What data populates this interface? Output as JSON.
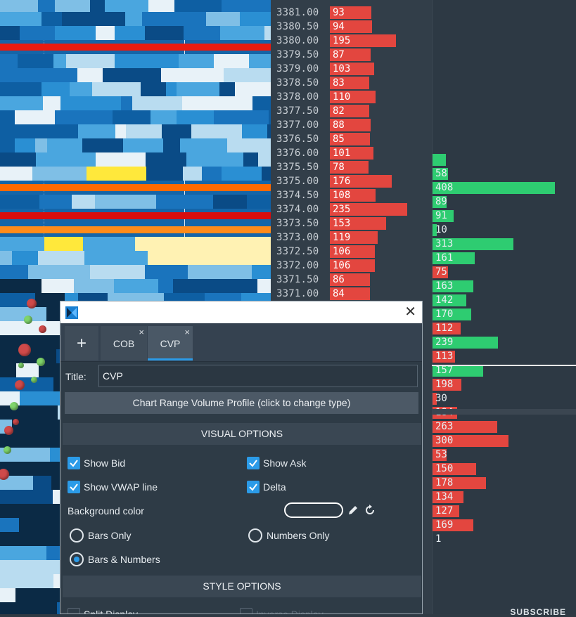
{
  "ladder": {
    "rows": [
      {
        "price": "3381.00",
        "vol": "93",
        "w": 27
      },
      {
        "price": "3380.50",
        "vol": "94",
        "w": 28
      },
      {
        "price": "3380.00",
        "vol": "195",
        "w": 62
      },
      {
        "price": "3379.50",
        "vol": "87",
        "w": 26
      },
      {
        "price": "3379.00",
        "vol": "103",
        "w": 31
      },
      {
        "price": "3378.50",
        "vol": "83",
        "w": 24
      },
      {
        "price": "3378.00",
        "vol": "110",
        "w": 33
      },
      {
        "price": "3377.50",
        "vol": "82",
        "w": 24
      },
      {
        "price": "3377.00",
        "vol": "88",
        "w": 26
      },
      {
        "price": "3376.50",
        "vol": "85",
        "w": 25
      },
      {
        "price": "3376.00",
        "vol": "101",
        "w": 30
      },
      {
        "price": "3375.50",
        "vol": "78",
        "w": 23
      },
      {
        "price": "3375.00",
        "vol": "176",
        "w": 56
      },
      {
        "price": "3374.50",
        "vol": "108",
        "w": 33
      },
      {
        "price": "3374.00",
        "vol": "235",
        "w": 78
      },
      {
        "price": "3373.50",
        "vol": "153",
        "w": 48
      },
      {
        "price": "3373.00",
        "vol": "119",
        "w": 36
      },
      {
        "price": "3372.50",
        "vol": "106",
        "w": 32
      },
      {
        "price": "3372.00",
        "vol": "106",
        "w": 32
      },
      {
        "price": "3371.50",
        "vol": "86",
        "w": 25
      },
      {
        "price": "3371.00",
        "vol": "84",
        "w": 25
      }
    ]
  },
  "cvp_profile": {
    "rows": [
      {
        "val": "",
        "color": "green",
        "w": 19
      },
      {
        "val": "58",
        "color": "green",
        "w": 22
      },
      {
        "val": "408",
        "color": "green",
        "w": 174
      },
      {
        "val": "89",
        "color": "green",
        "w": 20
      },
      {
        "val": "91",
        "color": "green",
        "w": 30
      },
      {
        "val": "10",
        "color": "green",
        "w": 6
      },
      {
        "val": "313",
        "color": "green",
        "w": 115
      },
      {
        "val": "161",
        "color": "green",
        "w": 60
      },
      {
        "val": "75",
        "color": "red",
        "w": 22
      },
      {
        "val": "163",
        "color": "green",
        "w": 58
      },
      {
        "val": "142",
        "color": "green",
        "w": 48
      },
      {
        "val": "170",
        "color": "green",
        "w": 55
      },
      {
        "val": "112",
        "color": "red",
        "w": 40
      },
      {
        "val": "239",
        "color": "green",
        "w": 93
      },
      {
        "val": "113",
        "color": "red",
        "w": 32
      },
      {
        "val": "157",
        "color": "green",
        "w": 72
      },
      {
        "val": "198",
        "color": "red",
        "w": 41
      },
      {
        "val": "30",
        "color": "red",
        "w": 6
      },
      {
        "val": "184",
        "color": "red",
        "w": 35
      },
      {
        "val": "263",
        "color": "red",
        "w": 92
      },
      {
        "val": "300",
        "color": "red",
        "w": 108
      },
      {
        "val": "53",
        "color": "red",
        "w": 20
      },
      {
        "val": "150",
        "color": "red",
        "w": 62
      },
      {
        "val": "178",
        "color": "red",
        "w": 76
      },
      {
        "val": "134",
        "color": "red",
        "w": 44
      },
      {
        "val": "127",
        "color": "red",
        "w": 38
      },
      {
        "val": "169",
        "color": "red",
        "w": 58
      },
      {
        "val": "1",
        "color": "none",
        "w": 0
      }
    ],
    "colors": {
      "green": "#2ecc71",
      "red": "#e3463f"
    }
  },
  "watermark": {
    "text": "SUBSCRIBE"
  },
  "dialog": {
    "tabs": {
      "add": "+",
      "cob": "COB",
      "cvp": "CVP",
      "close": "×"
    },
    "close": "✕",
    "title_label": "Title:",
    "title_value": "CVP",
    "type_button": "Chart Range Volume Profile (click to change type)",
    "visual_header": "VISUAL OPTIONS",
    "style_header": "STYLE OPTIONS",
    "options": {
      "show_bid": "Show Bid",
      "show_ask": "Show Ask",
      "show_vwap": "Show VWAP line",
      "delta": "Delta",
      "bg_color": "Background color",
      "bars_only": "Bars Only",
      "numbers_only": "Numbers Only",
      "bars_numbers": "Bars & Numbers",
      "split_display": "Split Display",
      "inverse_display": "Inverse Display"
    }
  }
}
